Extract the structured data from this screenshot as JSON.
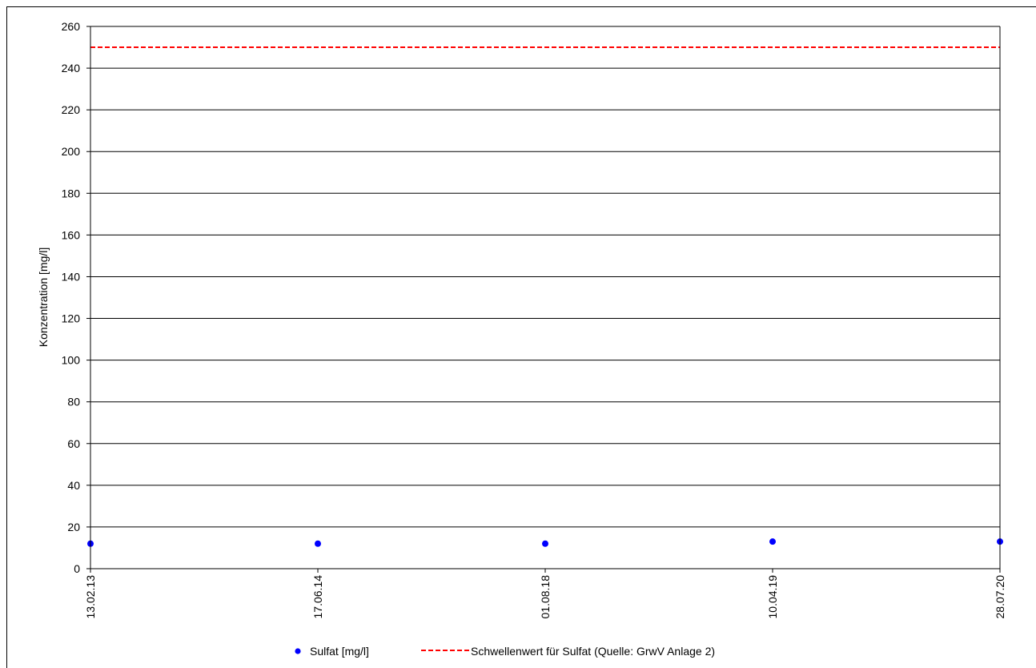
{
  "chart_data": {
    "type": "scatter",
    "ylabel": "Konzentration [mg/l]",
    "xlabel": "",
    "ylim": [
      0,
      260
    ],
    "yticks": [
      0,
      20,
      40,
      60,
      80,
      100,
      120,
      140,
      160,
      180,
      200,
      220,
      240,
      260
    ],
    "x_tick_labels": [
      "13.02.13",
      "17.06.14",
      "01.08.18",
      "10.04.19",
      "28.07.20"
    ],
    "grid": "horizontal",
    "legend_position": "bottom",
    "series": [
      {
        "name": "Sulfat [mg/l]",
        "kind": "scatter",
        "color": "#0000ff",
        "marker": "circle",
        "x": [
          "13.02.13",
          "17.06.14",
          "01.08.18",
          "10.04.19",
          "28.07.20"
        ],
        "y": [
          12,
          12,
          12,
          13,
          13
        ]
      },
      {
        "name": "Schwellenwert für Sulfat (Quelle: GrwV Anlage 2)",
        "kind": "hline",
        "color": "#ff0000",
        "style": "dashed",
        "y": 250
      }
    ]
  }
}
